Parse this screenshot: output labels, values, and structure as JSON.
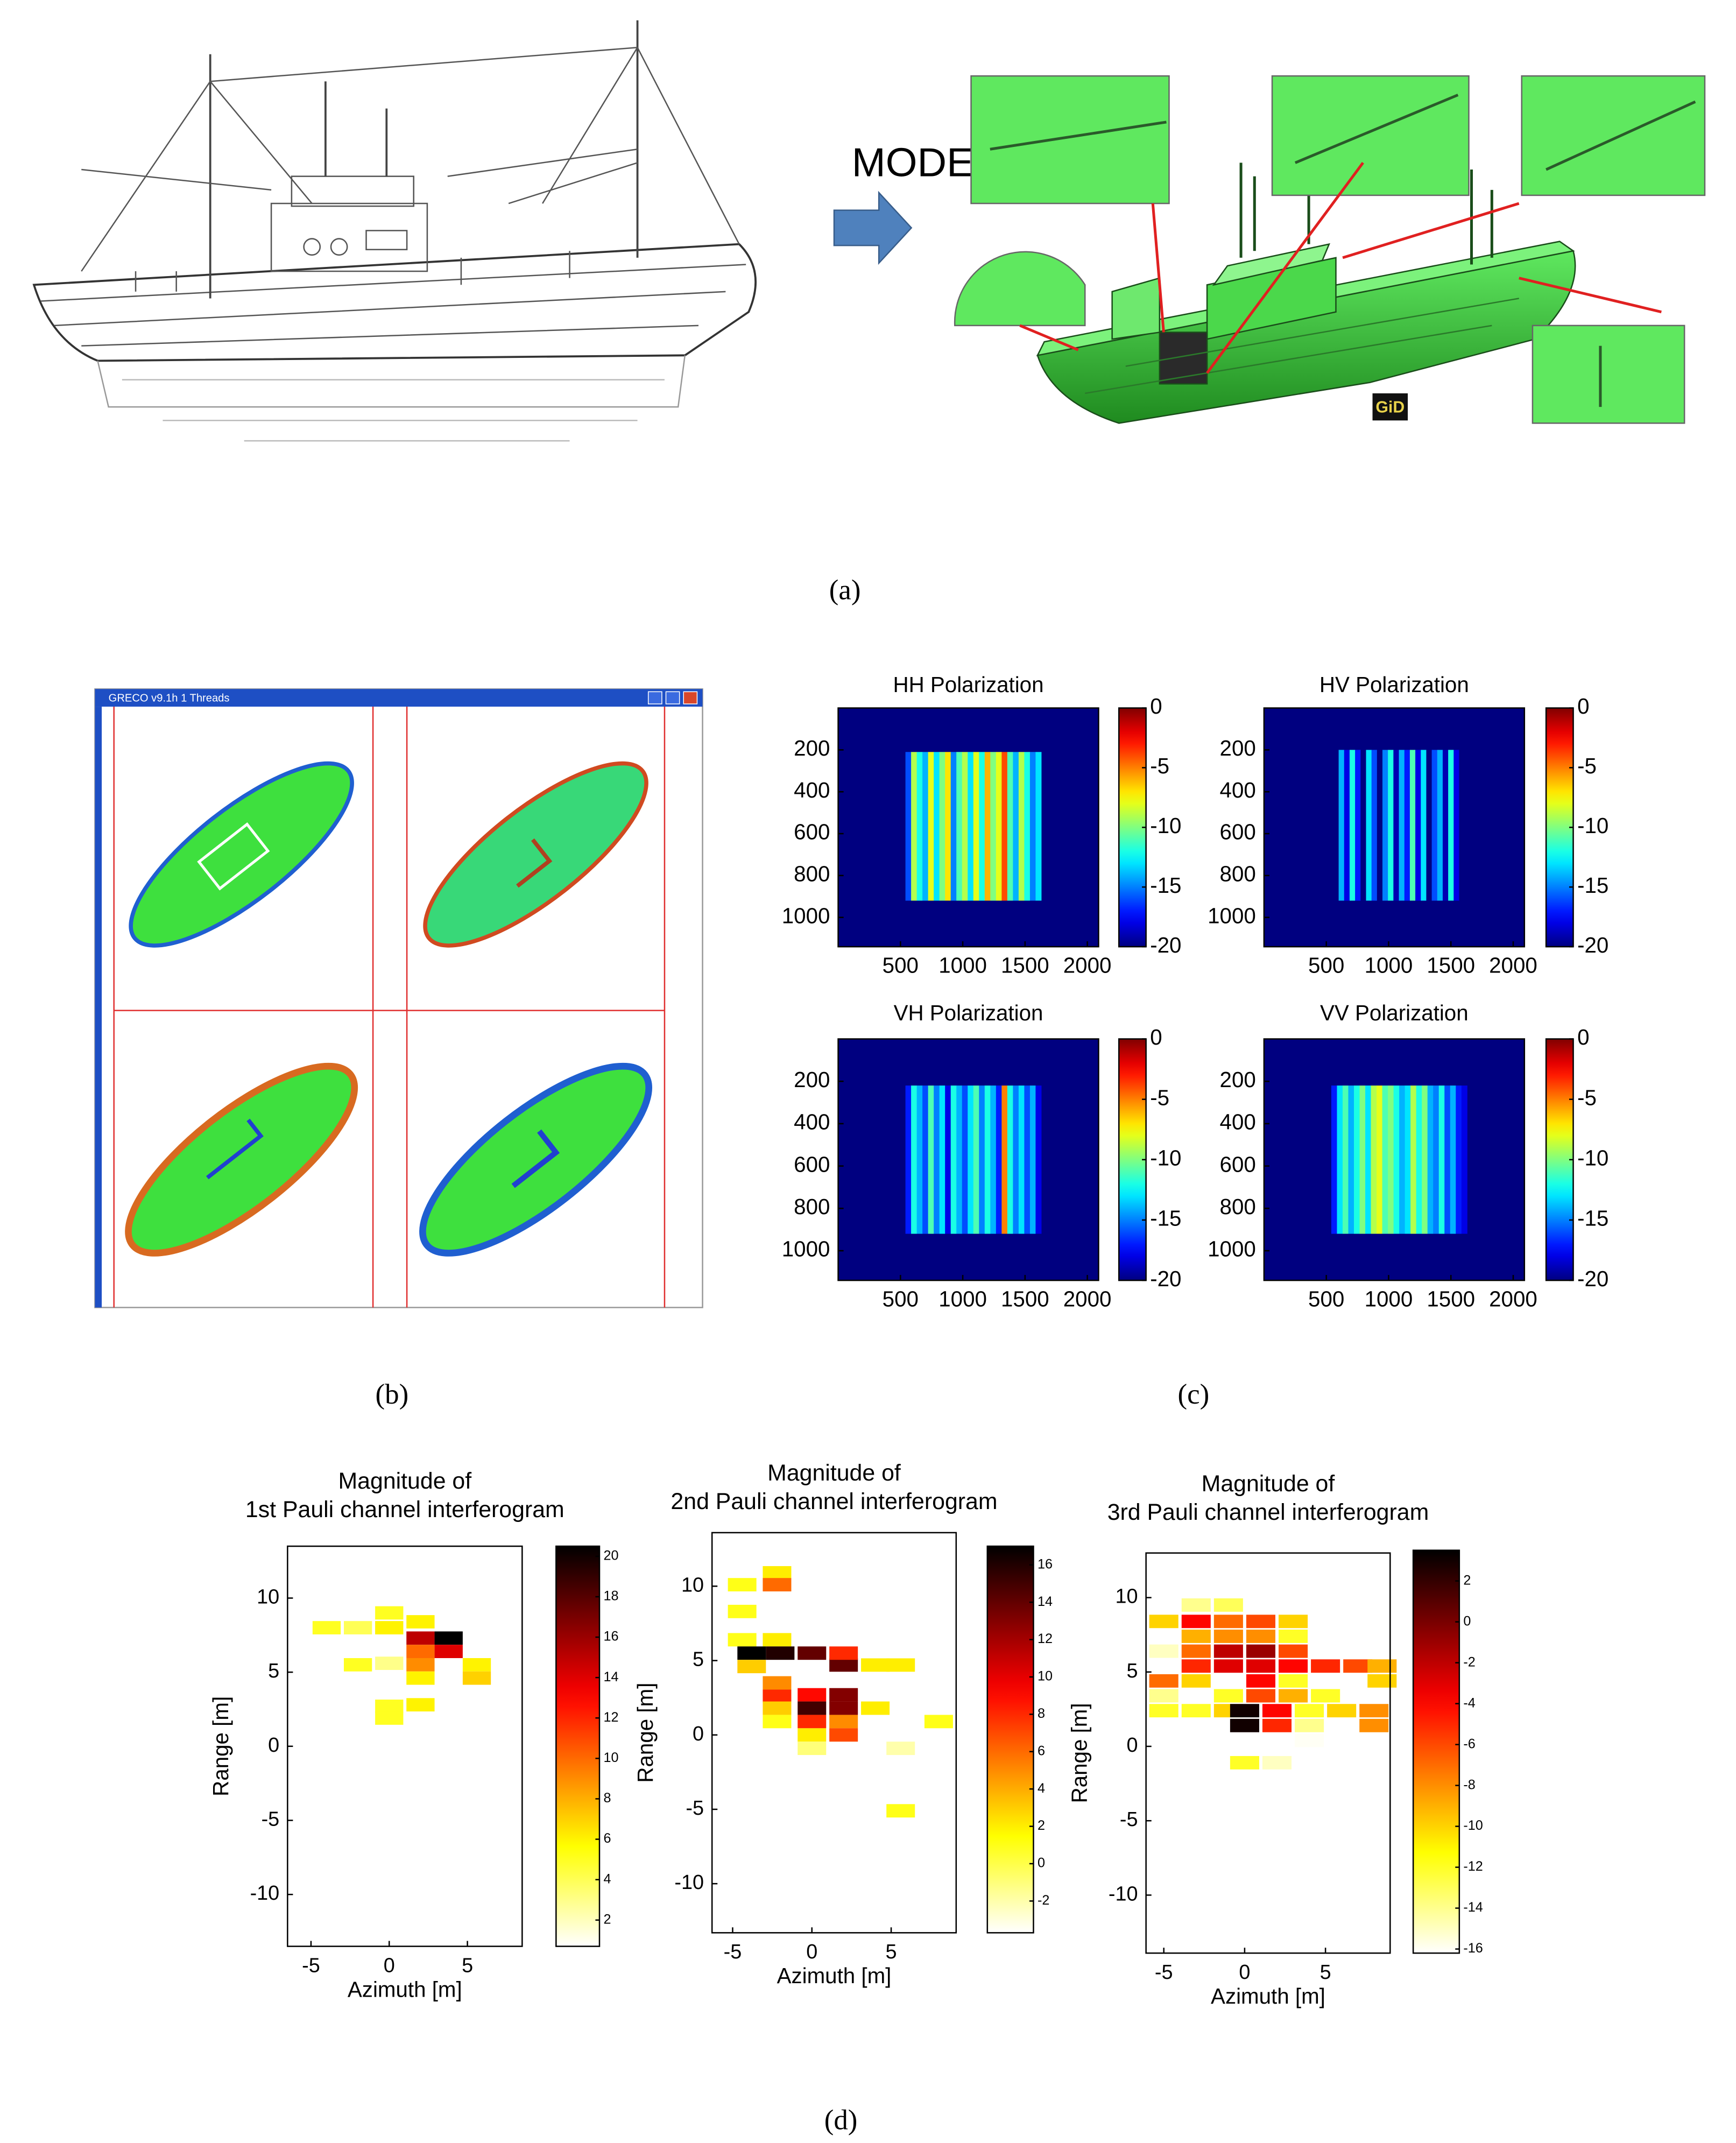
{
  "panel_a": {
    "model_label": "MODEL",
    "logo": "GiD",
    "caption": "(a)"
  },
  "panel_b": {
    "window_title": "GRECO v9.1h 1 Threads",
    "caption": "(b)"
  },
  "panel_c": {
    "caption": "(c)"
  },
  "panel_d": {
    "caption": "(d)"
  },
  "chart_data": [
    {
      "type": "heatmap",
      "title": "HH Polarization",
      "colormap": "jet",
      "xlim": [
        0,
        2090
      ],
      "ylim": [
        1140,
        0
      ],
      "xticks": [
        500,
        1000,
        1500,
        2000
      ],
      "yticks": [
        200,
        400,
        600,
        800,
        1000
      ],
      "clim": [
        -20,
        0
      ],
      "cticks": [
        0,
        -5,
        -10,
        -15,
        -20
      ],
      "background": -20,
      "x_extent": [
        540,
        1630
      ],
      "y_extent": [
        210,
        920
      ],
      "values": [
        -16,
        -9,
        -12,
        -14,
        -8,
        -13,
        -10,
        -7,
        -15,
        -11,
        -9,
        -13,
        -8,
        -12,
        -6,
        -10,
        -8,
        -4,
        -11,
        -14,
        -9,
        -12,
        -15,
        -13
      ]
    },
    {
      "type": "heatmap",
      "title": "HV Polarization",
      "colormap": "jet",
      "xlim": [
        0,
        2090
      ],
      "ylim": [
        1140,
        0
      ],
      "xticks": [
        500,
        1000,
        1500,
        2000
      ],
      "yticks": [
        200,
        400,
        600,
        800,
        1000
      ],
      "clim": [
        -20,
        0
      ],
      "cticks": [
        0,
        -5,
        -10,
        -15,
        -20
      ],
      "background": -20,
      "x_extent": [
        555,
        1610
      ],
      "y_extent": [
        200,
        920
      ],
      "values": [
        -20,
        -14,
        -18,
        -12,
        -17,
        -20,
        -13,
        -16,
        -20,
        -15,
        -12,
        -19,
        -14,
        -17,
        -11,
        -18,
        -13,
        -20,
        -16,
        -14,
        -19,
        -12,
        -18,
        -20
      ]
    },
    {
      "type": "heatmap",
      "title": "VH Polarization",
      "colormap": "jet",
      "xlim": [
        0,
        2090
      ],
      "ylim": [
        1140,
        0
      ],
      "xticks": [
        500,
        1000,
        1500,
        2000
      ],
      "yticks": [
        200,
        400,
        600,
        800,
        1000
      ],
      "clim": [
        -20,
        0
      ],
      "cticks": [
        0,
        -5,
        -10,
        -15,
        -20
      ],
      "background": -20,
      "x_extent": [
        540,
        1630
      ],
      "y_extent": [
        220,
        920
      ],
      "values": [
        -17,
        -12,
        -14,
        -16,
        -11,
        -15,
        -13,
        -18,
        -12,
        -14,
        -16,
        -13,
        -11,
        -15,
        -12,
        -14,
        -17,
        -5,
        -12,
        -15,
        -13,
        -16,
        -14,
        -18
      ]
    },
    {
      "type": "heatmap",
      "title": "VV Polarization",
      "colormap": "jet",
      "xlim": [
        0,
        2090
      ],
      "ylim": [
        1140,
        0
      ],
      "xticks": [
        500,
        1000,
        1500,
        2000
      ],
      "yticks": [
        200,
        400,
        600,
        800,
        1000
      ],
      "clim": [
        -20,
        0
      ],
      "cticks": [
        0,
        -5,
        -10,
        -15,
        -20
      ],
      "background": -20,
      "x_extent": [
        540,
        1630
      ],
      "y_extent": [
        220,
        920
      ],
      "values": [
        -17,
        -13,
        -11,
        -14,
        -12,
        -10,
        -13,
        -9,
        -8,
        -11,
        -10,
        -12,
        -14,
        -13,
        -9,
        -12,
        -10,
        -14,
        -15,
        -12,
        -16,
        -14,
        -17,
        -18
      ]
    },
    {
      "type": "cells",
      "title": [
        "Magnitude of",
        "1st Pauli channel interferogram"
      ],
      "xlabel": "Azimuth [m]",
      "ylabel": "Range [m]",
      "colormap": "hot_r",
      "xlim": [
        -6.5,
        8.5
      ],
      "ylim": [
        -13.5,
        13.5
      ],
      "xticks": [
        -5,
        0,
        5
      ],
      "yticks": [
        10,
        5,
        0,
        -5,
        -10
      ],
      "clim": [
        0.7,
        20.5
      ],
      "cticks": [
        2,
        4,
        6,
        8,
        10,
        12,
        14,
        16,
        18,
        20
      ],
      "cell_width": 1.8,
      "cell_height": 0.9,
      "cells": [
        [
          -4,
          8,
          5
        ],
        [
          -2,
          8,
          4
        ],
        [
          0,
          9,
          5
        ],
        [
          0,
          8,
          6
        ],
        [
          2,
          8.4,
          6
        ],
        [
          2,
          7.3,
          15
        ],
        [
          3.8,
          7.3,
          21
        ],
        [
          3.8,
          6.4,
          14
        ],
        [
          2,
          6.4,
          10
        ],
        [
          5.6,
          5.5,
          6
        ],
        [
          5.6,
          4.6,
          7
        ],
        [
          2,
          5.5,
          9
        ],
        [
          2,
          4.6,
          6
        ],
        [
          -2,
          5.5,
          5
        ],
        [
          0,
          5.6,
          3
        ],
        [
          0,
          2.7,
          5
        ],
        [
          2,
          2.8,
          6
        ],
        [
          0,
          1.9,
          5
        ]
      ]
    },
    {
      "type": "cells",
      "title": [
        "Magnitude of",
        "2nd Pauli channel interferogram"
      ],
      "xlabel": "Azimuth [m]",
      "ylabel": "Range [m]",
      "colormap": "hot_r",
      "xlim": [
        -6.3,
        9.1
      ],
      "ylim": [
        -13.3,
        13.6
      ],
      "xticks": [
        -5,
        0,
        5
      ],
      "yticks": [
        10,
        5,
        0,
        -5,
        -10
      ],
      "clim": [
        -3.7,
        17
      ],
      "cticks": [
        -2,
        0,
        2,
        4,
        6,
        8,
        10,
        12,
        14,
        16
      ],
      "cell_width": 1.8,
      "cell_height": 0.9,
      "cells": [
        [
          -4.4,
          10.1,
          1
        ],
        [
          -2.2,
          10.9,
          2
        ],
        [
          -2.2,
          10.1,
          6
        ],
        [
          -4.4,
          8.3,
          1
        ],
        [
          -4.4,
          6.4,
          1
        ],
        [
          -2.2,
          6.4,
          2
        ],
        [
          -3.8,
          5.5,
          17
        ],
        [
          -2,
          5.5,
          16
        ],
        [
          0,
          5.5,
          14
        ],
        [
          2,
          4.7,
          14
        ],
        [
          2,
          5.5,
          8
        ],
        [
          4,
          4.7,
          2
        ],
        [
          5.6,
          4.7,
          2
        ],
        [
          -3.8,
          4.6,
          3
        ],
        [
          -2.2,
          3.5,
          5
        ],
        [
          0,
          2.7,
          9
        ],
        [
          2,
          2.7,
          13
        ],
        [
          -2.2,
          2.6,
          8
        ],
        [
          0,
          1.8,
          15
        ],
        [
          2,
          1.8,
          13
        ],
        [
          -2.2,
          1.8,
          3
        ],
        [
          0,
          0.9,
          8
        ],
        [
          2,
          0.9,
          5
        ],
        [
          2,
          0,
          7
        ],
        [
          0,
          0,
          2
        ],
        [
          4,
          1.8,
          2
        ],
        [
          8,
          0.9,
          1
        ],
        [
          5.6,
          -0.9,
          -2
        ],
        [
          5.6,
          -5.1,
          1
        ],
        [
          -2.2,
          0.9,
          1
        ],
        [
          0,
          -0.9,
          -1
        ]
      ]
    },
    {
      "type": "cells",
      "title": [
        "Magnitude of",
        "3rd Pauli channel interferogram"
      ],
      "xlabel": "Azimuth [m]",
      "ylabel": "Range [m]",
      "colormap": "hot_r",
      "xlim": [
        -6.1,
        9.0
      ],
      "ylim": [
        -13.9,
        13.0
      ],
      "xticks": [
        -5,
        0,
        5
      ],
      "yticks": [
        10,
        5,
        0,
        -5,
        -10
      ],
      "clim": [
        -16.2,
        3.5
      ],
      "cticks": [
        2,
        0,
        -2,
        -4,
        -6,
        -8,
        -10,
        -12,
        -14,
        -16
      ],
      "cell_width": 1.8,
      "cell_height": 0.9,
      "cells": [
        [
          -3,
          9.5,
          -14
        ],
        [
          -1,
          9.5,
          -13
        ],
        [
          -5,
          8.4,
          -10
        ],
        [
          -3,
          8.4,
          -4
        ],
        [
          -1,
          8.4,
          -7
        ],
        [
          1,
          8.4,
          -6
        ],
        [
          3,
          8.4,
          -10
        ],
        [
          -3,
          7.4,
          -9
        ],
        [
          -1,
          7.4,
          -8
        ],
        [
          1,
          7.4,
          -8
        ],
        [
          3,
          7.4,
          -12
        ],
        [
          -5,
          6.4,
          -15
        ],
        [
          -3,
          6.4,
          -7
        ],
        [
          -1,
          6.4,
          -2
        ],
        [
          1,
          6.4,
          -1
        ],
        [
          3,
          6.4,
          -6
        ],
        [
          -3,
          5.4,
          -5
        ],
        [
          -1,
          5.4,
          -3
        ],
        [
          1,
          5.4,
          -3
        ],
        [
          3,
          5.4,
          -4
        ],
        [
          5,
          5.4,
          -5
        ],
        [
          7,
          5.4,
          -6
        ],
        [
          8.5,
          5.4,
          -9
        ],
        [
          -5,
          4.4,
          -7
        ],
        [
          -3,
          4.4,
          -10
        ],
        [
          1,
          4.4,
          -4
        ],
        [
          3,
          4.4,
          -12
        ],
        [
          8.5,
          4.4,
          -10
        ],
        [
          -5,
          3.4,
          -14
        ],
        [
          -1,
          3.4,
          -12
        ],
        [
          1,
          3.4,
          -6
        ],
        [
          3,
          3.4,
          -9
        ],
        [
          5,
          3.4,
          -12
        ],
        [
          -5,
          2.4,
          -12
        ],
        [
          -3,
          2.4,
          -12
        ],
        [
          -1,
          2.4,
          -10
        ],
        [
          2,
          2.4,
          -4
        ],
        [
          4,
          2.4,
          -12
        ],
        [
          6,
          2.4,
          -10
        ],
        [
          8,
          2.4,
          -8
        ],
        [
          0,
          2.4,
          3
        ],
        [
          0,
          1.4,
          3
        ],
        [
          2,
          1.4,
          -5
        ],
        [
          4,
          1.4,
          -14
        ],
        [
          8,
          1.4,
          -8
        ],
        [
          4,
          0.4,
          -16
        ],
        [
          0,
          -1.1,
          -12
        ],
        [
          2,
          -1.1,
          -15
        ]
      ]
    }
  ]
}
